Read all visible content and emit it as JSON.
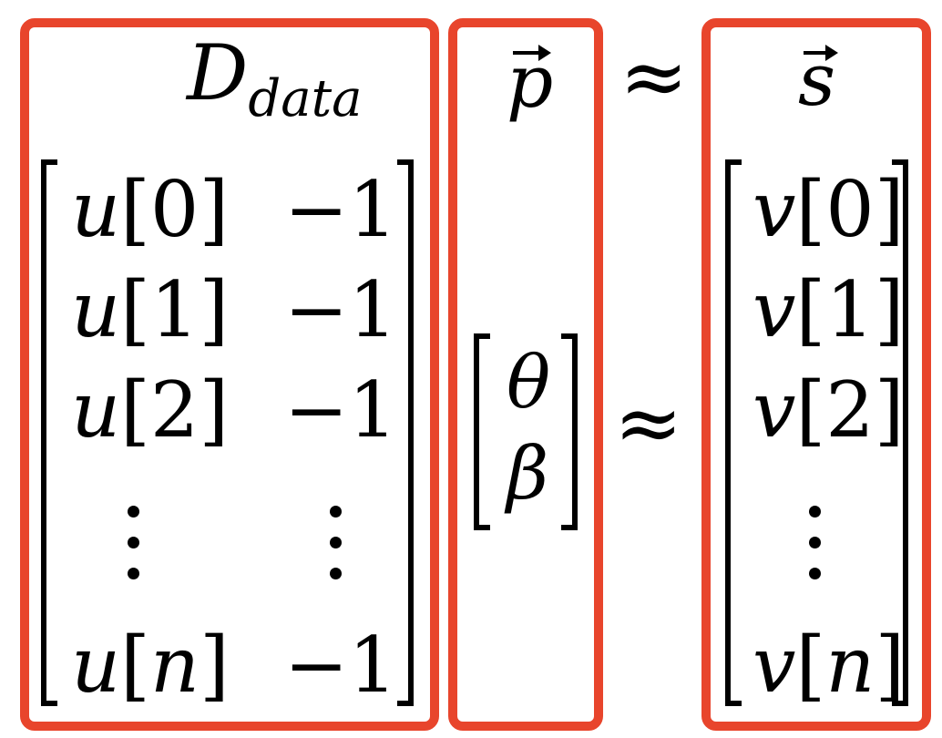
{
  "colors": {
    "frame": "#e8452c",
    "ink": "#000000"
  },
  "data_matrix": {
    "label_main": "D",
    "label_sub": "data",
    "col1": [
      {
        "var": "u",
        "index": "0"
      },
      {
        "var": "u",
        "index": "1"
      },
      {
        "var": "u",
        "index": "2"
      },
      {
        "var": "u",
        "index": "n"
      }
    ],
    "col2": [
      "−1",
      "−1",
      "−1",
      "−1"
    ]
  },
  "param_vector": {
    "label": "p",
    "entries": [
      "θ",
      "β"
    ]
  },
  "approx_symbol": "≈",
  "signal_vector": {
    "label": "s",
    "entries": [
      {
        "var": "v",
        "index": "0"
      },
      {
        "var": "v",
        "index": "1"
      },
      {
        "var": "v",
        "index": "2"
      },
      {
        "var": "v",
        "index": "n"
      }
    ]
  }
}
